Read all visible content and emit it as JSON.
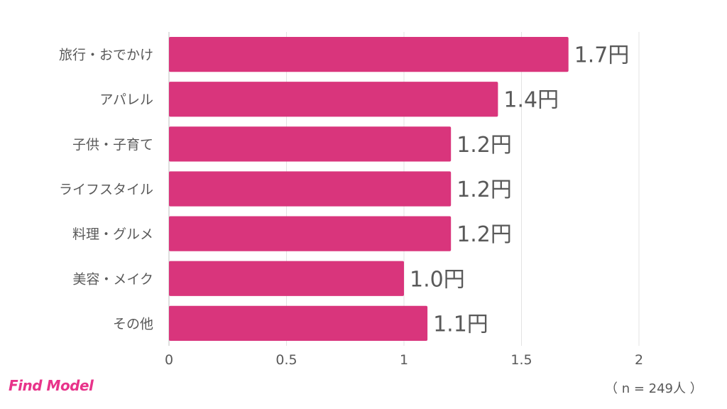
{
  "chart_data": {
    "type": "bar",
    "orientation": "horizontal",
    "categories": [
      "旅行・おでかけ",
      "アパレル",
      "子供・子育て",
      "ライフスタイル",
      "料理・グルメ",
      "美容・メイク",
      "その他"
    ],
    "values": [
      1.7,
      1.4,
      1.2,
      1.2,
      1.2,
      1.0,
      1.1
    ],
    "value_labels": [
      "1.7円",
      "1.4円",
      "1.2円",
      "1.2円",
      "1.2円",
      "1.0円",
      "1.1円"
    ],
    "xlim": [
      0,
      2
    ],
    "xticks": [
      0,
      0.5,
      1,
      1.5,
      2
    ],
    "xtick_labels": [
      "0",
      "0.5",
      "1",
      "1.5",
      "2"
    ],
    "grid": true,
    "bar_color": "#d9357c"
  },
  "logo_text": "Find Model",
  "logo_color": "#e8338a",
  "sample_note": "（ n = 249人 ）"
}
